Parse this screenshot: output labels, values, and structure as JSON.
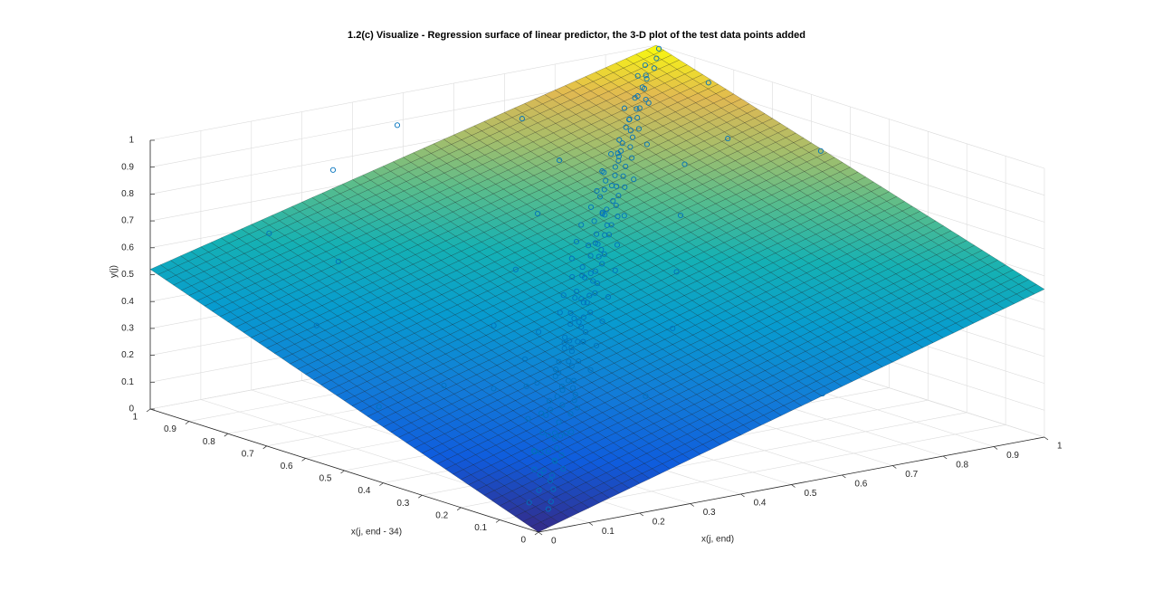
{
  "chart_data": {
    "type": "surface3d",
    "title": "1.2(c) Visualize - Regression surface of linear predictor, the 3-D plot of the test data points added",
    "xlabel": "x(j, end)",
    "ylabel": "x(j, end - 34)",
    "zlabel": "y(j)",
    "xlim": [
      0,
      1
    ],
    "ylim": [
      0,
      1
    ],
    "zlim": [
      0,
      1
    ],
    "xticks": [
      "0",
      "0.1",
      "0.2",
      "0.3",
      "0.4",
      "0.5",
      "0.6",
      "0.7",
      "0.8",
      "0.9",
      "1"
    ],
    "yticks": [
      "0",
      "0.1",
      "0.2",
      "0.3",
      "0.4",
      "0.5",
      "0.6",
      "0.7",
      "0.8",
      "0.9",
      "1"
    ],
    "zticks": [
      "0",
      "0.1",
      "0.2",
      "0.3",
      "0.4",
      "0.5",
      "0.6",
      "0.7",
      "0.8",
      "0.9",
      "1"
    ],
    "grid": true,
    "surface": {
      "description_source": "plane z = b0 + b1*x + b2*y",
      "corners": [
        {
          "x": 0,
          "y": 0,
          "z": 0.0
        },
        {
          "x": 1,
          "y": 0,
          "z": 0.55
        },
        {
          "x": 0,
          "y": 1,
          "z": 0.52
        },
        {
          "x": 1,
          "y": 1,
          "z": 1.0
        }
      ],
      "mesh_divisions": 50,
      "colormap": "parula",
      "edge_color": "#000000"
    },
    "scatter_color": "#0072bd",
    "scatter_points": [
      [
        0.02,
        0.01,
        0.01
      ],
      [
        0.03,
        0.02,
        0.02
      ],
      [
        0.01,
        0.03,
        0.02
      ],
      [
        0.05,
        0.04,
        0.05
      ],
      [
        0.04,
        0.06,
        0.05
      ],
      [
        0.08,
        0.07,
        0.08
      ],
      [
        0.07,
        0.09,
        0.09
      ],
      [
        0.1,
        0.1,
        0.11
      ],
      [
        0.12,
        0.11,
        0.12
      ],
      [
        0.11,
        0.13,
        0.13
      ],
      [
        0.14,
        0.14,
        0.15
      ],
      [
        0.16,
        0.15,
        0.16
      ],
      [
        0.15,
        0.17,
        0.17
      ],
      [
        0.18,
        0.18,
        0.19
      ],
      [
        0.2,
        0.19,
        0.21
      ],
      [
        0.19,
        0.21,
        0.21
      ],
      [
        0.22,
        0.22,
        0.23
      ],
      [
        0.24,
        0.23,
        0.25
      ],
      [
        0.23,
        0.25,
        0.25
      ],
      [
        0.26,
        0.26,
        0.27
      ],
      [
        0.28,
        0.27,
        0.29
      ],
      [
        0.27,
        0.29,
        0.3
      ],
      [
        0.3,
        0.3,
        0.32
      ],
      [
        0.32,
        0.31,
        0.33
      ],
      [
        0.31,
        0.33,
        0.33
      ],
      [
        0.34,
        0.34,
        0.36
      ],
      [
        0.36,
        0.35,
        0.37
      ],
      [
        0.35,
        0.37,
        0.38
      ],
      [
        0.38,
        0.38,
        0.4
      ],
      [
        0.4,
        0.4,
        0.42
      ],
      [
        0.42,
        0.41,
        0.43
      ],
      [
        0.41,
        0.43,
        0.44
      ],
      [
        0.44,
        0.44,
        0.46
      ],
      [
        0.46,
        0.45,
        0.47
      ],
      [
        0.45,
        0.47,
        0.48
      ],
      [
        0.48,
        0.48,
        0.5
      ],
      [
        0.5,
        0.5,
        0.52
      ],
      [
        0.52,
        0.51,
        0.53
      ],
      [
        0.51,
        0.53,
        0.54
      ],
      [
        0.54,
        0.54,
        0.56
      ],
      [
        0.56,
        0.56,
        0.58
      ],
      [
        0.58,
        0.57,
        0.59
      ],
      [
        0.57,
        0.59,
        0.6
      ],
      [
        0.6,
        0.6,
        0.62
      ],
      [
        0.62,
        0.62,
        0.64
      ],
      [
        0.64,
        0.63,
        0.66
      ],
      [
        0.63,
        0.65,
        0.66
      ],
      [
        0.66,
        0.66,
        0.68
      ],
      [
        0.68,
        0.68,
        0.7
      ],
      [
        0.7,
        0.69,
        0.72
      ],
      [
        0.69,
        0.71,
        0.72
      ],
      [
        0.72,
        0.72,
        0.74
      ],
      [
        0.74,
        0.74,
        0.76
      ],
      [
        0.76,
        0.75,
        0.78
      ],
      [
        0.75,
        0.77,
        0.78
      ],
      [
        0.78,
        0.78,
        0.8
      ],
      [
        0.8,
        0.8,
        0.82
      ],
      [
        0.82,
        0.81,
        0.84
      ],
      [
        0.81,
        0.83,
        0.84
      ],
      [
        0.84,
        0.84,
        0.86
      ],
      [
        0.86,
        0.86,
        0.88
      ],
      [
        0.88,
        0.87,
        0.9
      ],
      [
        0.9,
        0.9,
        0.92
      ],
      [
        0.92,
        0.92,
        0.94
      ],
      [
        0.95,
        0.94,
        0.96
      ],
      [
        0.97,
        0.96,
        0.98
      ],
      [
        0.99,
        0.98,
        1.0
      ],
      [
        0.05,
        0.03,
        0.18
      ],
      [
        0.03,
        0.05,
        0.2
      ],
      [
        0.07,
        0.05,
        0.22
      ],
      [
        0.09,
        0.07,
        0.25
      ],
      [
        0.06,
        0.09,
        0.24
      ],
      [
        0.12,
        0.1,
        0.27
      ],
      [
        0.1,
        0.12,
        0.28
      ],
      [
        0.14,
        0.13,
        0.3
      ],
      [
        0.13,
        0.15,
        0.32
      ],
      [
        0.17,
        0.16,
        0.34
      ],
      [
        0.16,
        0.18,
        0.35
      ],
      [
        0.2,
        0.2,
        0.38
      ],
      [
        0.22,
        0.21,
        0.39
      ],
      [
        0.21,
        0.23,
        0.4
      ],
      [
        0.25,
        0.24,
        0.42
      ],
      [
        0.24,
        0.26,
        0.43
      ],
      [
        0.28,
        0.28,
        0.46
      ],
      [
        0.3,
        0.29,
        0.47
      ],
      [
        0.29,
        0.31,
        0.48
      ],
      [
        0.33,
        0.32,
        0.5
      ],
      [
        0.35,
        0.34,
        0.52
      ],
      [
        0.34,
        0.36,
        0.53
      ],
      [
        0.38,
        0.37,
        0.55
      ],
      [
        0.4,
        0.39,
        0.56
      ],
      [
        0.39,
        0.41,
        0.57
      ],
      [
        0.43,
        0.42,
        0.59
      ],
      [
        0.45,
        0.44,
        0.61
      ],
      [
        0.44,
        0.46,
        0.62
      ],
      [
        0.48,
        0.47,
        0.64
      ],
      [
        0.5,
        0.49,
        0.65
      ],
      [
        0.49,
        0.51,
        0.66
      ],
      [
        0.53,
        0.52,
        0.68
      ],
      [
        0.55,
        0.54,
        0.7
      ],
      [
        0.54,
        0.56,
        0.71
      ],
      [
        0.58,
        0.58,
        0.73
      ],
      [
        0.6,
        0.59,
        0.75
      ],
      [
        0.59,
        0.61,
        0.76
      ],
      [
        0.63,
        0.62,
        0.78
      ],
      [
        0.65,
        0.65,
        0.8
      ],
      [
        0.64,
        0.67,
        0.81
      ],
      [
        0.68,
        0.68,
        0.83
      ],
      [
        0.7,
        0.7,
        0.85
      ],
      [
        0.72,
        0.73,
        0.87
      ],
      [
        0.75,
        0.74,
        0.89
      ],
      [
        0.77,
        0.77,
        0.91
      ],
      [
        0.8,
        0.79,
        0.93
      ],
      [
        0.82,
        0.82,
        0.95
      ],
      [
        0.85,
        0.84,
        0.97
      ],
      [
        0.88,
        0.87,
        0.99
      ],
      [
        0.06,
        0.08,
        0.02
      ],
      [
        0.09,
        0.05,
        0.03
      ],
      [
        0.13,
        0.12,
        0.04
      ],
      [
        0.17,
        0.14,
        0.06
      ],
      [
        0.15,
        0.19,
        0.07
      ],
      [
        0.22,
        0.2,
        0.09
      ],
      [
        0.26,
        0.24,
        0.11
      ],
      [
        0.24,
        0.28,
        0.12
      ],
      [
        0.31,
        0.3,
        0.14
      ],
      [
        0.35,
        0.33,
        0.16
      ],
      [
        0.33,
        0.37,
        0.17
      ],
      [
        0.4,
        0.38,
        0.19
      ],
      [
        0.44,
        0.43,
        0.22
      ],
      [
        0.42,
        0.46,
        0.23
      ],
      [
        0.49,
        0.48,
        0.25
      ],
      [
        0.53,
        0.52,
        0.27
      ],
      [
        0.51,
        0.55,
        0.28
      ],
      [
        0.58,
        0.57,
        0.31
      ],
      [
        0.62,
        0.61,
        0.33
      ],
      [
        0.66,
        0.65,
        0.36
      ],
      [
        0.7,
        0.69,
        0.39
      ],
      [
        0.74,
        0.73,
        0.42
      ],
      [
        0.78,
        0.77,
        0.45
      ],
      [
        0.83,
        0.82,
        0.48
      ],
      [
        0.02,
        0.05,
        0.08
      ],
      [
        0.04,
        0.02,
        0.09
      ],
      [
        0.06,
        0.04,
        0.12
      ],
      [
        0.08,
        0.1,
        0.14
      ],
      [
        0.11,
        0.08,
        0.16
      ],
      [
        0.13,
        0.11,
        0.19
      ],
      [
        0.1,
        0.14,
        0.2
      ],
      [
        0.15,
        0.17,
        0.23
      ],
      [
        0.18,
        0.15,
        0.24
      ],
      [
        0.2,
        0.23,
        0.28
      ],
      [
        0.23,
        0.2,
        0.29
      ],
      [
        0.26,
        0.25,
        0.33
      ],
      [
        0.27,
        0.3,
        0.36
      ],
      [
        0.31,
        0.27,
        0.37
      ],
      [
        0.32,
        0.35,
        0.41
      ],
      [
        0.36,
        0.32,
        0.42
      ],
      [
        0.37,
        0.4,
        0.46
      ],
      [
        0.41,
        0.37,
        0.47
      ],
      [
        0.43,
        0.45,
        0.51
      ],
      [
        0.46,
        0.42,
        0.52
      ],
      [
        0.47,
        0.5,
        0.56
      ],
      [
        0.52,
        0.48,
        0.57
      ],
      [
        0.55,
        0.57,
        0.62
      ],
      [
        0.57,
        0.54,
        0.62
      ],
      [
        0.61,
        0.63,
        0.68
      ],
      [
        0.63,
        0.6,
        0.68
      ],
      [
        0.67,
        0.7,
        0.75
      ],
      [
        0.71,
        0.68,
        0.75
      ],
      [
        0.74,
        0.76,
        0.8
      ],
      [
        0.79,
        0.75,
        0.82
      ],
      [
        0.83,
        0.86,
        0.89
      ],
      [
        0.87,
        0.85,
        0.9
      ],
      [
        0.91,
        0.93,
        0.95
      ],
      [
        0.94,
        0.95,
        0.97
      ],
      [
        0.02,
        0.02,
        0.28
      ],
      [
        0.04,
        0.01,
        0.35
      ],
      [
        0.01,
        0.04,
        0.4
      ],
      [
        0.06,
        0.03,
        0.47
      ],
      [
        0.03,
        0.07,
        0.5
      ],
      [
        0.08,
        0.06,
        0.55
      ],
      [
        0.05,
        0.1,
        0.58
      ],
      [
        0.12,
        0.09,
        0.62
      ],
      [
        0.1,
        0.13,
        0.65
      ],
      [
        0.15,
        0.14,
        0.7
      ],
      [
        0.18,
        0.17,
        0.74
      ],
      [
        0.22,
        0.2,
        0.78
      ],
      [
        0.25,
        0.24,
        0.82
      ],
      [
        0.29,
        0.28,
        0.85
      ],
      [
        0.33,
        0.32,
        0.88
      ],
      [
        0.38,
        0.36,
        0.91
      ],
      [
        0.43,
        0.41,
        0.93
      ],
      [
        0.49,
        0.47,
        0.95
      ],
      [
        0.55,
        0.53,
        0.97
      ],
      [
        0.05,
        0.2,
        0.05
      ],
      [
        0.08,
        0.3,
        0.1
      ],
      [
        0.03,
        0.45,
        0.25
      ],
      [
        0.2,
        0.06,
        0.12
      ],
      [
        0.28,
        0.1,
        0.15
      ],
      [
        0.4,
        0.08,
        0.2
      ],
      [
        0.12,
        0.4,
        0.32
      ],
      [
        0.06,
        0.65,
        0.45
      ],
      [
        0.6,
        0.05,
        0.28
      ],
      [
        0.12,
        0.85,
        0.68
      ],
      [
        0.7,
        0.12,
        0.4
      ],
      [
        0.8,
        0.2,
        0.52
      ],
      [
        0.18,
        0.75,
        0.6
      ],
      [
        0.9,
        0.35,
        0.65
      ],
      [
        0.3,
        0.92,
        0.82
      ],
      [
        0.62,
        0.85,
        0.93
      ],
      [
        0.85,
        0.62,
        0.88
      ],
      [
        0.95,
        0.8,
        0.97
      ],
      [
        0.45,
        0.95,
        0.92
      ],
      [
        0.98,
        0.55,
        0.82
      ],
      [
        0.35,
        0.18,
        0.3
      ],
      [
        0.18,
        0.35,
        0.31
      ],
      [
        0.48,
        0.28,
        0.46
      ],
      [
        0.28,
        0.48,
        0.45
      ],
      [
        0.58,
        0.4,
        0.58
      ],
      [
        0.4,
        0.58,
        0.57
      ],
      [
        0.68,
        0.52,
        0.7
      ],
      [
        0.52,
        0.68,
        0.69
      ],
      [
        0.78,
        0.64,
        0.8
      ],
      [
        0.64,
        0.78,
        0.8
      ],
      [
        0.07,
        0.05,
        0.3
      ],
      [
        0.09,
        0.11,
        0.36
      ],
      [
        0.14,
        0.09,
        0.4
      ],
      [
        0.12,
        0.16,
        0.44
      ],
      [
        0.19,
        0.17,
        0.49
      ],
      [
        0.23,
        0.22,
        0.53
      ],
      [
        0.27,
        0.26,
        0.58
      ],
      [
        0.31,
        0.31,
        0.62
      ],
      [
        0.36,
        0.35,
        0.66
      ],
      [
        0.41,
        0.4,
        0.7
      ],
      [
        0.46,
        0.45,
        0.74
      ],
      [
        0.51,
        0.5,
        0.78
      ],
      [
        0.56,
        0.56,
        0.82
      ],
      [
        0.62,
        0.61,
        0.86
      ],
      [
        0.68,
        0.67,
        0.9
      ],
      [
        0.74,
        0.73,
        0.94
      ],
      [
        0.81,
        0.8,
        0.97
      ]
    ]
  }
}
